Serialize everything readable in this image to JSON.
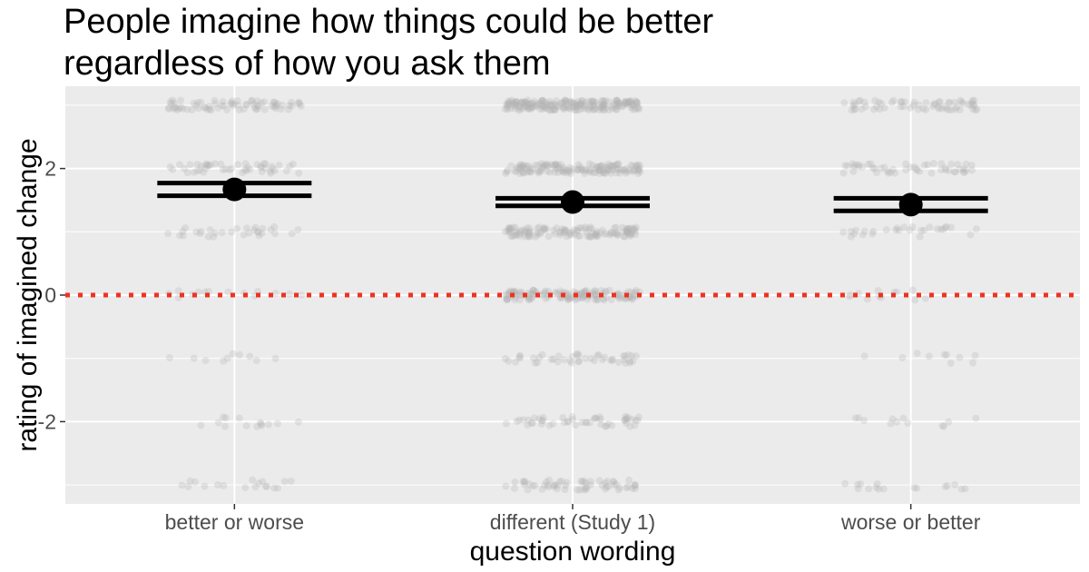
{
  "chart_data": {
    "type": "scatter",
    "title_lines": [
      "People imagine how things could be better",
      "regardless of how you ask them"
    ],
    "xlabel": "question wording",
    "ylabel": "rating of imagined change",
    "categories": [
      "better or worse",
      "different (Study 1)",
      "worse or better"
    ],
    "ylim": [
      -3.3,
      3.3
    ],
    "yticks": [
      -2,
      0,
      2
    ],
    "ytick_labels": [
      "-2",
      "0",
      "2"
    ],
    "grid": true,
    "reference_line": {
      "y": 0,
      "color": "#ee3322",
      "style": "dotted"
    },
    "means": [
      1.67,
      1.47,
      1.43
    ],
    "ci_upper": [
      1.77,
      1.53,
      1.53
    ],
    "ci_lower": [
      1.57,
      1.41,
      1.33
    ],
    "response_levels": [
      -3,
      -2,
      -1,
      0,
      1,
      2,
      3
    ],
    "point_counts": [
      [
        18,
        14,
        10,
        14,
        30,
        48,
        75
      ],
      [
        60,
        50,
        45,
        140,
        130,
        150,
        210
      ],
      [
        16,
        12,
        10,
        12,
        28,
        50,
        65
      ]
    ],
    "colors": {
      "panel": "#ebebeb",
      "grid": "#ffffff",
      "points": "#b5b5b5",
      "summary": "#000000"
    }
  }
}
